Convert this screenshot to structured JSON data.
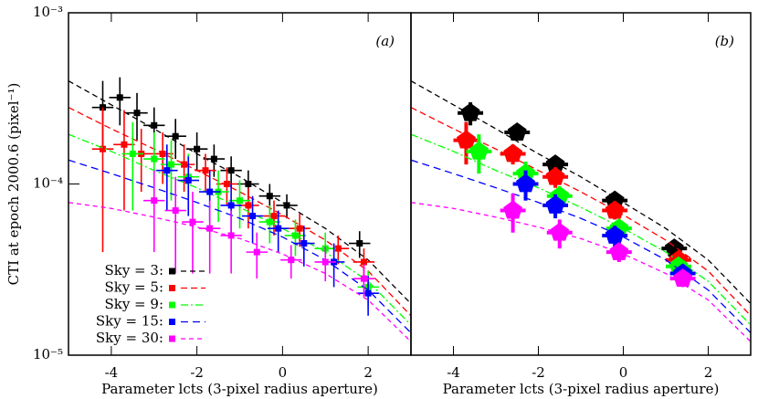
{
  "chart_data": [
    {
      "type": "scatter",
      "panel_label": "(a)",
      "xlabel": "Parameter lcts (3-pixel radius aperture)",
      "ylabel": "CTI at epoch 2000.6 (pixel⁻¹)",
      "log_y": true,
      "legend": "lower left",
      "xlim": [
        -5,
        3
      ],
      "xticks": [
        -4,
        -2,
        0,
        2
      ],
      "ylim": [
        1e-05,
        0.001
      ],
      "yticks": [
        {
          "value": 1e-05,
          "label": "10⁻⁵"
        },
        {
          "value": 0.0001,
          "label": "10⁻⁴"
        },
        {
          "value": 0.001,
          "label": "10⁻³"
        }
      ],
      "line_x": [
        -5,
        -4,
        -3,
        -2,
        -1,
        0,
        1,
        2,
        3
      ],
      "series": [
        {
          "name": "Sky = 3:",
          "color": "#000000",
          "dash": "6,4",
          "marker": "square",
          "xerr": 0.25,
          "x": [
            -4.2,
            -3.8,
            -3.4,
            -3.0,
            -2.5,
            -2.0,
            -1.6,
            -1.2,
            -0.8,
            -0.3,
            0.1,
            1.8
          ],
          "values": [
            0.00028,
            0.00032,
            0.00026,
            0.00022,
            0.00019,
            0.00016,
            0.00014,
            0.00012,
            0.0001,
            8.5e-05,
            7.5e-05,
            4.5e-05
          ],
          "yerr": [
            0.00012,
            0.0001,
            8e-05,
            6e-05,
            5e-05,
            4e-05,
            3e-05,
            2.5e-05,
            2e-05,
            1.5e-05,
            1.2e-05,
            8e-06
          ],
          "line_values": [
            0.0004,
            0.00029,
            0.00021,
            0.00015,
            0.00011,
            7.8e-05,
            5.5e-05,
            3.6e-05,
            2e-05
          ]
        },
        {
          "name": "Sky = 5:",
          "color": "#ff0000",
          "dash": "7,4",
          "marker": "square",
          "xerr": 0.25,
          "x": [
            -4.2,
            -3.7,
            -3.3,
            -2.8,
            -2.3,
            -1.8,
            -1.3,
            -0.8,
            -0.2,
            0.4,
            1.3,
            1.9
          ],
          "values": [
            0.00016,
            0.00017,
            0.00015,
            0.00015,
            0.00013,
            0.00012,
            0.0001,
            7.5e-05,
            6.5e-05,
            5.5e-05,
            4.2e-05,
            3.5e-05
          ],
          "yerr": [
            0.00012,
            0.0001,
            6e-05,
            5e-05,
            4e-05,
            3e-05,
            2.5e-05,
            2e-05,
            1.5e-05,
            1.2e-05,
            8e-06,
            7e-06
          ],
          "line_values": [
            0.00028,
            0.00021,
            0.00016,
            0.00012,
            9e-05,
            6.6e-05,
            4.7e-05,
            3.1e-05,
            1.7e-05
          ]
        },
        {
          "name": "Sky = 9:",
          "color": "#00ff00",
          "dash": "8,3,2,3",
          "marker": "square",
          "xerr": 0.25,
          "x": [
            -3.5,
            -3.0,
            -2.6,
            -2.2,
            -1.5,
            -1.0,
            -0.3,
            0.3,
            1.0,
            2.0
          ],
          "values": [
            0.00015,
            0.00014,
            0.00013,
            0.00011,
            9e-05,
            8e-05,
            6e-05,
            5e-05,
            4.2e-05,
            2.5e-05
          ],
          "yerr": [
            8e-05,
            6e-05,
            5e-05,
            4e-05,
            3e-05,
            2.5e-05,
            1.5e-05,
            1.2e-05,
            1e-05,
            6e-06
          ],
          "line_values": [
            0.000195,
            0.000155,
            0.00012,
            9.5e-05,
            7.3e-05,
            5.5e-05,
            4e-05,
            2.7e-05,
            1.5e-05
          ]
        },
        {
          "name": "Sky = 15:",
          "color": "#0000ff",
          "dash": "8,5",
          "marker": "square",
          "xerr": 0.25,
          "x": [
            -2.7,
            -2.2,
            -1.7,
            -1.2,
            -0.7,
            -0.1,
            0.5,
            1.2,
            2.0
          ],
          "values": [
            0.00012,
            0.000105,
            9e-05,
            7.5e-05,
            6.5e-05,
            5.5e-05,
            4.5e-05,
            3.5e-05,
            2.3e-05
          ],
          "yerr": [
            5e-05,
            4e-05,
            3e-05,
            2.5e-05,
            2e-05,
            1.5e-05,
            1.2e-05,
            1e-05,
            6e-06
          ],
          "line_values": [
            0.000138,
            0.000115,
            9.5e-05,
            7.8e-05,
            6.3e-05,
            4.9e-05,
            3.6e-05,
            2.4e-05,
            1.35e-05
          ]
        },
        {
          "name": "Sky = 30:",
          "color": "#ff00ff",
          "dash": "5,4",
          "marker": "square",
          "xerr": 0.25,
          "x": [
            -3.0,
            -2.5,
            -2.1,
            -1.7,
            -1.2,
            -0.6,
            0.2,
            1.0,
            1.9
          ],
          "values": [
            8e-05,
            7e-05,
            6e-05,
            5.5e-05,
            5e-05,
            4e-05,
            3.6e-05,
            3.5e-05,
            2.8e-05
          ],
          "yerr": [
            4e-05,
            4e-05,
            3e-05,
            2.5e-05,
            2e-05,
            1.2e-05,
            8e-06,
            8e-06,
            6e-06
          ],
          "line_values": [
            7.8e-05,
            7.2e-05,
            6.4e-05,
            5.6e-05,
            4.8e-05,
            3.9e-05,
            3e-05,
            2.1e-05,
            1.2e-05
          ]
        }
      ]
    },
    {
      "type": "scatter",
      "panel_label": "(b)",
      "xlabel": "Parameter lcts (3-pixel radius aperture)",
      "log_y": true,
      "xlim": [
        -5,
        3
      ],
      "xticks": [
        -4,
        -2,
        0,
        2
      ],
      "ylim": [
        1e-05,
        0.001
      ],
      "line_x": [
        -5,
        -4,
        -3,
        -2,
        -1,
        0,
        1,
        2,
        3
      ],
      "series": [
        {
          "color": "#000000",
          "dash": "6,4",
          "marker": "pentagon",
          "xerr": 0.3,
          "x": [
            -3.6,
            -2.5,
            -1.6,
            -0.2,
            1.2
          ],
          "values": [
            0.00026,
            0.0002,
            0.00013,
            8e-05,
            4.2e-05
          ],
          "yerr": [
            4e-05,
            2e-05,
            1.5e-05,
            8e-06,
            5e-06
          ],
          "line_values": [
            0.0004,
            0.00029,
            0.00021,
            0.00015,
            0.00011,
            7.8e-05,
            5.5e-05,
            3.6e-05,
            2e-05
          ]
        },
        {
          "color": "#ff0000",
          "dash": "7,4",
          "marker": "pentagon",
          "xerr": 0.3,
          "x": [
            -3.7,
            -2.6,
            -1.6,
            -0.2,
            1.3
          ],
          "values": [
            0.00018,
            0.00015,
            0.00011,
            7e-05,
            3.6e-05
          ],
          "yerr": [
            5e-05,
            2e-05,
            1.5e-05,
            8e-06,
            4e-06
          ],
          "line_values": [
            0.00028,
            0.00021,
            0.00016,
            0.00012,
            9e-05,
            6.6e-05,
            4.7e-05,
            3.1e-05,
            1.7e-05
          ]
        },
        {
          "color": "#00ff00",
          "dash": "8,3,2,3",
          "marker": "pentagon",
          "xerr": 0.3,
          "x": [
            -3.4,
            -2.3,
            -1.5,
            -0.1,
            1.3
          ],
          "values": [
            0.000155,
            0.000115,
            8.5e-05,
            5.5e-05,
            3.3e-05
          ],
          "yerr": [
            4e-05,
            2e-05,
            1.2e-05,
            7e-06,
            4e-06
          ],
          "line_values": [
            0.000195,
            0.000155,
            0.00012,
            9.5e-05,
            7.3e-05,
            5.5e-05,
            4e-05,
            2.7e-05,
            1.5e-05
          ]
        },
        {
          "color": "#0000ff",
          "dash": "8,5",
          "marker": "pentagon",
          "xerr": 0.3,
          "x": [
            -2.3,
            -1.6,
            -0.2,
            1.4
          ],
          "values": [
            0.0001,
            7.5e-05,
            5e-05,
            3e-05
          ],
          "yerr": [
            2e-05,
            1.2e-05,
            7e-06,
            4e-06
          ],
          "line_values": [
            0.000138,
            0.000115,
            9.5e-05,
            7.8e-05,
            6.3e-05,
            4.9e-05,
            3.6e-05,
            2.4e-05,
            1.35e-05
          ]
        },
        {
          "color": "#ff00ff",
          "dash": "5,4",
          "marker": "pentagon",
          "xerr": 0.3,
          "x": [
            -2.6,
            -1.5,
            -0.1,
            1.4
          ],
          "values": [
            7e-05,
            5.2e-05,
            4e-05,
            2.8e-05
          ],
          "yerr": [
            1.8e-05,
            1e-05,
            5e-06,
            3e-06
          ],
          "line_values": [
            7.8e-05,
            7.2e-05,
            6.4e-05,
            5.6e-05,
            4.8e-05,
            3.9e-05,
            3e-05,
            2.1e-05,
            1.2e-05
          ]
        }
      ]
    }
  ]
}
